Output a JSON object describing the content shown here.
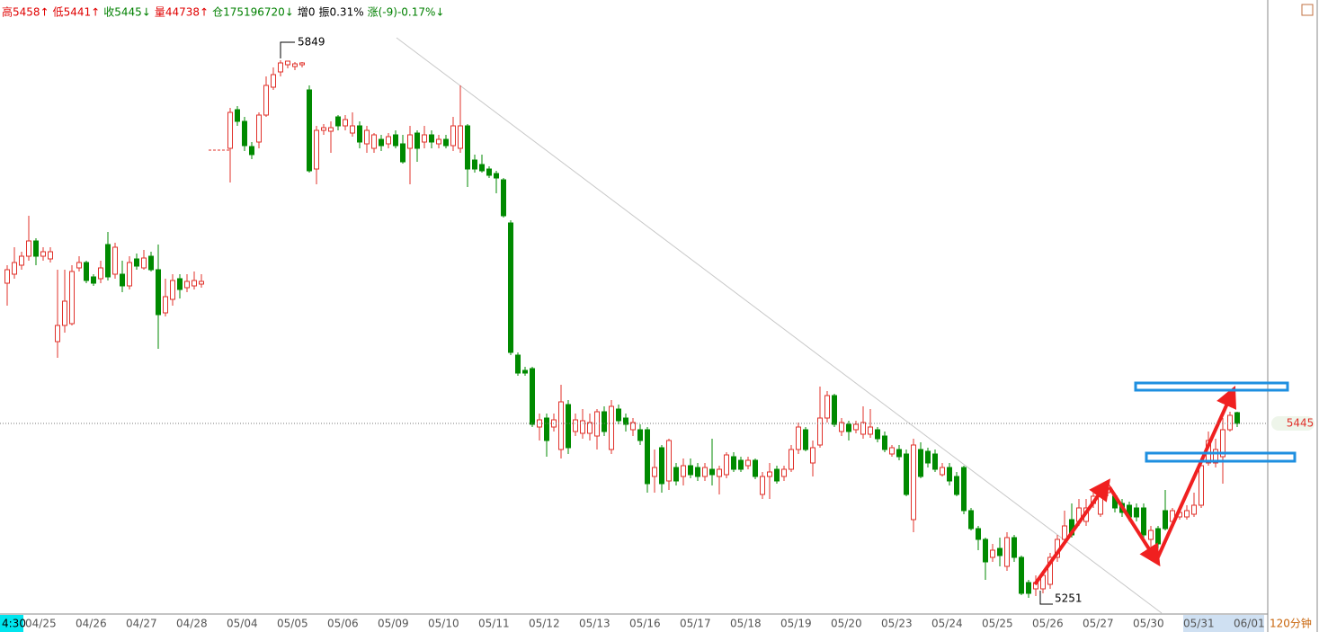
{
  "chart_data": {
    "type": "candlestick",
    "header": [
      {
        "text": "高5458↑",
        "color": "#e00000"
      },
      {
        "text": "低5441↑",
        "color": "#e00000"
      },
      {
        "text": "收5445↓",
        "color": "#008000"
      },
      {
        "text": "量44738↑",
        "color": "#e00000"
      },
      {
        "text": "仓175196720↓",
        "color": "#008000"
      },
      {
        "text": "增0",
        "color": "#000000"
      },
      {
        "text": "振0.31%",
        "color": "#000000"
      },
      {
        "text": "涨(-9)-0.17%↓",
        "color": "#008000"
      }
    ],
    "cursor_label": "4:30",
    "period": "120分钟",
    "max_label": 5849,
    "min_label": 5251,
    "last_price": 5445,
    "up_color": "#e0302a",
    "down_color": "#008a00",
    "ylim": [
      5236,
      5916
    ],
    "categories": [
      null,
      null,
      null,
      "04/25",
      null,
      null,
      null,
      null,
      null,
      null,
      "04/26",
      null,
      null,
      null,
      null,
      null,
      null,
      "04/27",
      null,
      null,
      null,
      null,
      null,
      null,
      "04/28",
      null,
      null,
      null,
      null,
      null,
      null,
      "05/04",
      null,
      null,
      null,
      null,
      null,
      null,
      "05/05",
      null,
      null,
      null,
      null,
      null,
      null,
      "05/06",
      null,
      null,
      null,
      null,
      null,
      null,
      "05/09",
      null,
      null,
      null,
      null,
      null,
      null,
      "05/10",
      null,
      null,
      null,
      null,
      null,
      null,
      "05/11",
      null,
      null,
      null,
      null,
      null,
      null,
      "05/12",
      null,
      null,
      null,
      null,
      null,
      null,
      "05/13",
      null,
      null,
      null,
      null,
      null,
      null,
      "05/16",
      null,
      null,
      null,
      null,
      null,
      null,
      "05/17",
      null,
      null,
      null,
      null,
      null,
      null,
      "05/18",
      null,
      null,
      null,
      null,
      null,
      null,
      "05/19",
      null,
      null,
      null,
      null,
      null,
      null,
      "05/20",
      null,
      null,
      null,
      null,
      null,
      null,
      "05/23",
      null,
      null,
      null,
      null,
      null,
      null,
      "05/24",
      null,
      null,
      null,
      null,
      null,
      null,
      "05/25",
      null,
      null,
      null,
      null,
      null,
      null,
      "05/26",
      null,
      null,
      null,
      null,
      null,
      null,
      "05/27",
      null,
      null,
      null,
      null,
      null,
      null,
      "05/30",
      null,
      null,
      null,
      null,
      null,
      null,
      "05/31",
      null,
      null,
      null,
      null,
      null,
      null,
      "06/01"
    ],
    "open": [
      5601,
      5611,
      5621,
      5631,
      5648,
      5631,
      5628,
      5536,
      5554,
      5556,
      5618,
      5624,
      5608,
      5606,
      5644,
      5611,
      5611,
      5598,
      5628,
      5618,
      5631,
      5616,
      5568,
      5583,
      5606,
      5596,
      5598,
      5600,
      null,
      null,
      null,
      5751,
      5794,
      5781,
      5753,
      5758,
      5788,
      5819,
      5836,
      5844,
      5842,
      5844,
      5816,
      5728,
      5771,
      5770,
      5786,
      5776,
      5768,
      5776,
      5756,
      5751,
      5761,
      5756,
      5766,
      5756,
      5751,
      5768,
      5758,
      5766,
      5756,
      5761,
      5754,
      5751,
      5776,
      5738,
      5733,
      5728,
      5723,
      5716,
      5668,
      5521,
      5504,
      5506,
      5441,
      5451,
      5441,
      5416,
      5466,
      5436,
      5434,
      5434,
      5431,
      5458,
      5416,
      5461,
      5451,
      5438,
      5438,
      5438,
      5386,
      5418,
      5381,
      5396,
      5386,
      5398,
      5396,
      5386,
      5394,
      5386,
      5388,
      5408,
      5404,
      5398,
      5404,
      5366,
      5386,
      5394,
      5386,
      5394,
      5416,
      5438,
      5401,
      5421,
      5451,
      5476,
      5436,
      5444,
      5438,
      5433,
      5433,
      5438,
      5431,
      5411,
      5416,
      5411,
      5338,
      5416,
      5414,
      5411,
      5388,
      5396,
      5386,
      5396,
      5348,
      5328,
      5316,
      5296,
      5306,
      5286,
      5318,
      5296,
      5268,
      5261,
      5261,
      5266,
      5296,
      5316,
      5338,
      5336,
      5336,
      5356,
      5344,
      5368,
      5364,
      5356,
      5354,
      5351,
      5351,
      5316,
      5328,
      5348,
      5336,
      5341,
      5341,
      5344,
      5354,
      5401,
      5401,
      5408,
      5438,
      5457
    ],
    "high": [
      5621,
      5641,
      5636,
      5676,
      5651,
      5641,
      5641,
      5616,
      5616,
      5621,
      5631,
      5626,
      5611,
      5626,
      5658,
      5646,
      5626,
      5631,
      5634,
      5638,
      5636,
      5644,
      5606,
      5611,
      5611,
      5611,
      5614,
      5611,
      null,
      null,
      null,
      5796,
      5798,
      5786,
      5758,
      5791,
      5831,
      5841,
      5849,
      5848,
      5847,
      5847,
      5821,
      5776,
      5778,
      5781,
      5788,
      5788,
      5791,
      5781,
      5776,
      5768,
      5766,
      5768,
      5771,
      5766,
      5776,
      5771,
      5776,
      5771,
      5766,
      5766,
      5786,
      5821,
      5778,
      5744,
      5744,
      5731,
      5726,
      5718,
      5671,
      5524,
      5508,
      5508,
      5456,
      5456,
      5456,
      5488,
      5471,
      5456,
      5461,
      5456,
      5461,
      5464,
      5471,
      5466,
      5456,
      5451,
      5444,
      5441,
      5416,
      5421,
      5428,
      5401,
      5406,
      5406,
      5401,
      5401,
      5428,
      5398,
      5413,
      5413,
      5408,
      5408,
      5406,
      5391,
      5401,
      5398,
      5398,
      5421,
      5446,
      5441,
      5426,
      5486,
      5481,
      5478,
      5451,
      5448,
      5448,
      5464,
      5461,
      5441,
      5436,
      5421,
      5421,
      5416,
      5428,
      5424,
      5418,
      5416,
      5401,
      5401,
      5391,
      5398,
      5351,
      5331,
      5318,
      5311,
      5318,
      5324,
      5321,
      5298,
      5271,
      5276,
      5281,
      5301,
      5321,
      5348,
      5356,
      5361,
      5361,
      5371,
      5376,
      5381,
      5368,
      5361,
      5358,
      5356,
      5356,
      5331,
      5331,
      5371,
      5351,
      5351,
      5354,
      5368,
      5406,
      5436,
      5428,
      5451,
      5458,
      5458
    ],
    "low": [
      5576,
      5606,
      5616,
      5626,
      5621,
      5626,
      5624,
      5518,
      5546,
      5554,
      5614,
      5601,
      5598,
      5601,
      5604,
      5606,
      5591,
      5594,
      5616,
      5616,
      5614,
      5528,
      5564,
      5576,
      5584,
      5591,
      5594,
      5596,
      null,
      null,
      null,
      5713,
      5776,
      5748,
      5739,
      5751,
      5786,
      5816,
      5831,
      5840,
      5838,
      5841,
      5724,
      5711,
      5766,
      5746,
      5771,
      5771,
      5764,
      5751,
      5746,
      5746,
      5748,
      5751,
      5751,
      5734,
      5711,
      5736,
      5751,
      5751,
      5751,
      5751,
      5748,
      5746,
      5708,
      5724,
      5724,
      5718,
      5701,
      5674,
      5521,
      5498,
      5498,
      5441,
      5426,
      5408,
      5436,
      5406,
      5411,
      5431,
      5428,
      5426,
      5416,
      5431,
      5411,
      5444,
      5436,
      5431,
      5421,
      5368,
      5368,
      5368,
      5371,
      5376,
      5376,
      5384,
      5381,
      5381,
      5376,
      5366,
      5384,
      5391,
      5391,
      5394,
      5383,
      5361,
      5361,
      5378,
      5381,
      5391,
      5411,
      5414,
      5386,
      5418,
      5446,
      5441,
      5431,
      5426,
      5434,
      5428,
      5429,
      5424,
      5413,
      5408,
      5404,
      5364,
      5324,
      5384,
      5396,
      5391,
      5386,
      5376,
      5364,
      5344,
      5326,
      5304,
      5271,
      5291,
      5286,
      5281,
      5291,
      5254,
      5251,
      5253,
      5256,
      5261,
      5291,
      5311,
      5318,
      5331,
      5331,
      5351,
      5341,
      5364,
      5346,
      5341,
      5336,
      5336,
      5316,
      5306,
      5306,
      5326,
      5331,
      5338,
      5338,
      5341,
      5351,
      5398,
      5396,
      5378,
      5436,
      5441
    ],
    "close": [
      5616,
      5624,
      5631,
      5648,
      5631,
      5636,
      5636,
      5554,
      5581,
      5614,
      5624,
      5604,
      5601,
      5618,
      5608,
      5641,
      5598,
      5624,
      5620,
      5629,
      5616,
      5566,
      5586,
      5604,
      5594,
      5603,
      5604,
      5603,
      null,
      null,
      null,
      5791,
      5781,
      5754,
      5744,
      5788,
      5821,
      5833,
      5846,
      5848,
      5845,
      5846,
      5726,
      5771,
      5774,
      5774,
      5776,
      5783,
      5776,
      5758,
      5771,
      5766,
      5754,
      5764,
      5754,
      5736,
      5766,
      5751,
      5766,
      5758,
      5761,
      5754,
      5776,
      5776,
      5728,
      5728,
      5726,
      5721,
      5718,
      5676,
      5524,
      5501,
      5501,
      5444,
      5449,
      5426,
      5449,
      5469,
      5418,
      5449,
      5448,
      5446,
      5458,
      5436,
      5464,
      5448,
      5444,
      5446,
      5426,
      5378,
      5396,
      5378,
      5426,
      5381,
      5398,
      5388,
      5386,
      5396,
      5388,
      5394,
      5410,
      5394,
      5394,
      5404,
      5386,
      5386,
      5391,
      5381,
      5394,
      5416,
      5441,
      5416,
      5418,
      5451,
      5476,
      5444,
      5446,
      5436,
      5444,
      5446,
      5441,
      5428,
      5416,
      5418,
      5408,
      5366,
      5421,
      5386,
      5401,
      5394,
      5396,
      5381,
      5366,
      5348,
      5328,
      5316,
      5291,
      5304,
      5298,
      5318,
      5296,
      5256,
      5256,
      5268,
      5276,
      5296,
      5316,
      5331,
      5321,
      5351,
      5351,
      5364,
      5371,
      5376,
      5351,
      5346,
      5341,
      5341,
      5321,
      5326,
      5311,
      5328,
      5348,
      5346,
      5348,
      5354,
      5398,
      5426,
      5416,
      5438,
      5454,
      5445
    ]
  }
}
